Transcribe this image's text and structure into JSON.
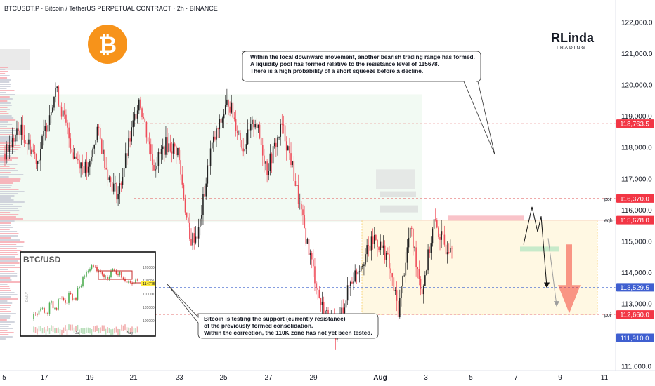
{
  "header": {
    "title": "BTCUSDT.P · Bitcoin / TetherUS PERPETUAL CONTRACT · 2h · BINANCE"
  },
  "logo": {
    "line1": "RLinda",
    "line2": "TRADING"
  },
  "colors": {
    "up": "#e8e8e8",
    "down": "#ef4d5a",
    "body_up": "#222222",
    "accent_red": "#f23645",
    "box_green": "#e8f5e9",
    "box_yellow": "#fff8e1",
    "blue_dash": "#5b7bd5",
    "bitcoin": "#f7931a"
  },
  "annotations": {
    "top": [
      "Within the local downward movement, another bearish trading range has formed.",
      "A liquidity pool has formed relative to the resistance level of 115678.",
      "There is a high probability of a short squeeze before a decline."
    ],
    "bottom": [
      "Bitcoin is testing the support (currently resistance)",
      "of the previously formed consolidation.",
      "Within the correction, the 110K zone has not yet been tested."
    ]
  },
  "inset": {
    "title": "BTC/USD",
    "side_label": "DAILY",
    "y_ticks": [
      "120000",
      "117500",
      "115000",
      "112500",
      "110000",
      "107500",
      "105000",
      "102500",
      "100000"
    ],
    "x_ticks": [
      "Jul",
      "Aug"
    ],
    "price_tag": "114775"
  },
  "chart_data": {
    "type": "candlestick",
    "title": "BTCUSDT.P · Bitcoin / TetherUS PERPETUAL CONTRACT · 2h · BINANCE",
    "ylim": [
      110700,
      122500
    ],
    "y_ticks": [
      "122,000.0",
      "121,000.0",
      "120,000.0",
      "119,000.0",
      "118,000.0",
      "117,000.0",
      "116,000.0",
      "115,000.0",
      "114,000.0",
      "113,000.0",
      "111,000.0"
    ],
    "x_ticks": [
      "5",
      "17",
      "19",
      "21",
      "23",
      "25",
      "27",
      "29",
      "Aug",
      "3",
      "5",
      "7",
      "9",
      "11"
    ],
    "levels": [
      {
        "price": 118763.5,
        "label": "118,763.5",
        "tag": ""
      },
      {
        "price": 116370.0,
        "label": "116,370.0",
        "tag": "poi"
      },
      {
        "price": 115678.0,
        "label": "115,678.0",
        "tag": "eqh"
      },
      {
        "price": 113529.5,
        "label": "113,529.5",
        "tag": ""
      },
      {
        "price": 112660.0,
        "label": "112,660.0",
        "tag": "poi"
      },
      {
        "price": 111910.0,
        "label": "111,910.0",
        "tag": ""
      }
    ],
    "anchors": [
      {
        "t": 0,
        "p": 117800
      },
      {
        "t": 10,
        "p": 118600
      },
      {
        "t": 22,
        "p": 117600
      },
      {
        "t": 34,
        "p": 119900
      },
      {
        "t": 46,
        "p": 117800
      },
      {
        "t": 56,
        "p": 117200
      },
      {
        "t": 62,
        "p": 118600
      },
      {
        "t": 70,
        "p": 117000
      },
      {
        "t": 76,
        "p": 116500
      },
      {
        "t": 90,
        "p": 119600
      },
      {
        "t": 100,
        "p": 117400
      },
      {
        "t": 108,
        "p": 118100
      },
      {
        "t": 116,
        "p": 117900
      },
      {
        "t": 124,
        "p": 115000
      },
      {
        "t": 130,
        "p": 115300
      },
      {
        "t": 138,
        "p": 117900
      },
      {
        "t": 150,
        "p": 119500
      },
      {
        "t": 160,
        "p": 118000
      },
      {
        "t": 168,
        "p": 118900
      },
      {
        "t": 176,
        "p": 117300
      },
      {
        "t": 186,
        "p": 118700
      },
      {
        "t": 192,
        "p": 117600
      },
      {
        "t": 200,
        "p": 115600
      },
      {
        "t": 212,
        "p": 113000
      },
      {
        "t": 222,
        "p": 112100
      },
      {
        "t": 232,
        "p": 113700
      },
      {
        "t": 248,
        "p": 115100
      },
      {
        "t": 256,
        "p": 114600
      },
      {
        "t": 264,
        "p": 112800
      },
      {
        "t": 272,
        "p": 115400
      },
      {
        "t": 280,
        "p": 113400
      },
      {
        "t": 288,
        "p": 115600
      },
      {
        "t": 296,
        "p": 114800
      },
      {
        "t": 300,
        "p": 115000
      }
    ]
  }
}
